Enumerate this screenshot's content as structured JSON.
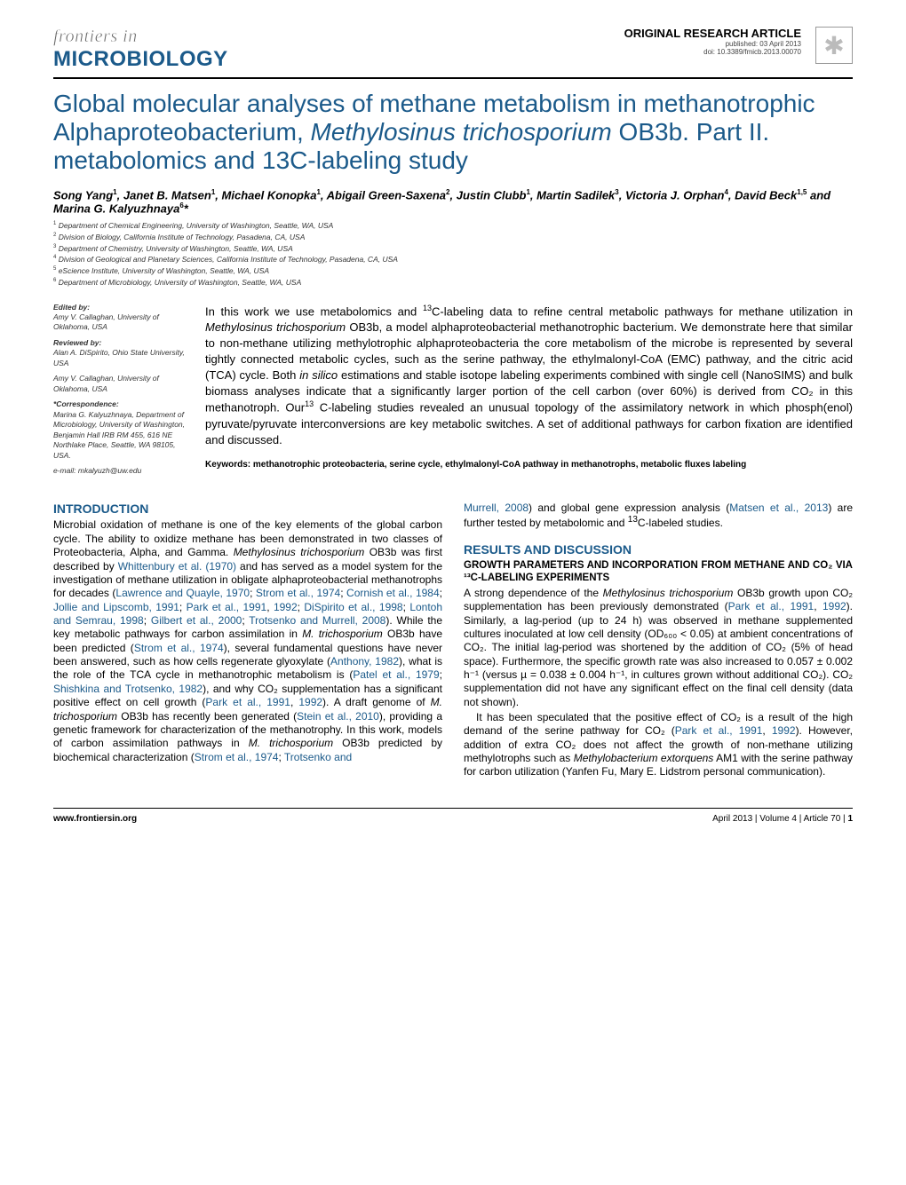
{
  "header": {
    "frontiers_in": "frontiers in",
    "microbiology": "MICROBIOLOGY",
    "article_type": "ORIGINAL RESEARCH ARTICLE",
    "pub_date": "published: 03 April 2013",
    "doi": "doi: 10.3389/fmicb.2013.00070"
  },
  "title": {
    "pre": "Global molecular analyses of methane metabolism in methanotrophic Alphaproteobacterium, ",
    "genus": "Methylosinus trichosporium",
    "post": " OB3b. Part II. metabolomics and 13C-labeling study"
  },
  "authors": {
    "list": [
      {
        "name": "Song Yang",
        "sup": "1"
      },
      {
        "name": "Janet B. Matsen",
        "sup": "1"
      },
      {
        "name": "Michael Konopka",
        "sup": "1"
      },
      {
        "name": "Abigail Green-Saxena",
        "sup": "2"
      },
      {
        "name": "Justin Clubb",
        "sup": "1"
      },
      {
        "name": "Martin Sadilek",
        "sup": "3"
      },
      {
        "name": "Victoria J. Orphan",
        "sup": "4"
      },
      {
        "name": "David Beck",
        "sup": "1,5"
      },
      {
        "name": "Marina G. Kalyuzhnaya",
        "sup": "6",
        "last": true,
        "star": true
      }
    ]
  },
  "affiliations": [
    {
      "num": "1",
      "text": "Department of Chemical Engineering, University of Washington, Seattle, WA, USA"
    },
    {
      "num": "2",
      "text": "Division of Biology, California Institute of Technology, Pasadena, CA, USA"
    },
    {
      "num": "3",
      "text": "Department of Chemistry, University of Washington, Seattle, WA, USA"
    },
    {
      "num": "4",
      "text": "Division of Geological and Planetary Sciences, California Institute of Technology, Pasadena, CA, USA"
    },
    {
      "num": "5",
      "text": "eScience Institute, University of Washington, Seattle, WA, USA"
    },
    {
      "num": "6",
      "text": "Department of Microbiology, University of Washington, Seattle, WA, USA"
    }
  ],
  "side": {
    "edited_label": "Edited by:",
    "edited": "Amy V. Callaghan, University of Oklahoma, USA",
    "reviewed_label": "Reviewed by:",
    "reviewed1": "Alan A. DiSpirito, Ohio State University, USA",
    "reviewed2": "Amy V. Callaghan, University of Oklahoma, USA",
    "corr_label": "*Correspondence:",
    "corr": "Marina G. Kalyuzhnaya, Department of Microbiology, University of Washington, Benjamin Hall IRB RM 455, 616 NE Northlake Place, Seattle, WA 98105, USA.",
    "email": "e-mail: mkalyuzh@uw.edu"
  },
  "abstract": {
    "p1a": "In this work we use metabolomics and ",
    "p1b": "C-labeling data to refine central metabolic pathways for methane utilization in ",
    "p1_ital": "Methylosinus trichosporium",
    "p1c": " OB3b, a model alphaproteobacterial methanotrophic bacterium. We demonstrate here that similar to non-methane utilizing methylotrophic alphaproteobacteria the core metabolism of the microbe is represented by several tightly connected metabolic cycles, such as the serine pathway, the ethylmalonyl-CoA (EMC) pathway, and the citric acid (TCA) cycle. Both ",
    "p1_ital2": "in silico",
    "p1d": " estimations and stable isotope labeling experiments combined with single cell (NanoSIMS) and bulk biomass analyses indicate that a significantly larger portion of the cell carbon (over 60%) is derived from CO₂ in this methanotroph. Our",
    "p1e": " C-labeling studies revealed an unusual topology of the assimilatory network in which phosph(enol) pyruvate/pyruvate interconversions are key metabolic switches. A set of additional pathways for carbon fixation are identified and discussed.",
    "keywords_label": "Keywords: ",
    "keywords": "methanotrophic proteobacteria, serine cycle, ethylmalonyl-CoA pathway in methanotrophs, metabolic fluxes labeling"
  },
  "intro": {
    "heading": "INTRODUCTION",
    "p1": "Microbial oxidation of methane is one of the key elements of the global carbon cycle. The ability to oxidize methane has been demonstrated in two classes of Proteobacteria, Alpha, and Gamma. ",
    "p1_ital": "Methylosinus trichosporium",
    "p1b": " OB3b was first described by ",
    "r1": "Whittenbury et al. (1970)",
    "p1c": " and has served as a model system for the investigation of methane utilization in obligate alphaproteobacterial methanotrophs for decades (",
    "r2": "Lawrence and Quayle, 1970",
    "r3": "Strom et al., 1974",
    "r4": "Cornish et al., 1984",
    "r5": "Jollie and Lipscomb, 1991",
    "r6": "Park et al., 1991",
    "r7": "1992",
    "r8": "DiSpirito et al., 1998",
    "r9": "Lontoh and Semrau, 1998",
    "r10": "Gilbert et al., 2000",
    "r11": "Trotsenko and Murrell, 2008",
    "p1d": "). While the key metabolic pathways for carbon assimilation in ",
    "p1_ital2": "M. trichosporium",
    "p1e": " OB3b have been predicted (",
    "r12": "Strom et al., 1974",
    "p1f": "), several fundamental questions have never been answered, such as how cells regenerate glyoxylate (",
    "r13": "Anthony, 1982",
    "p1g": "), what is the role of the TCA cycle in methanotrophic metabolism is (",
    "r14": "Patel et al., 1979",
    "r15": "Shishkina and Trotsenko, 1982",
    "p1h": "), and why CO₂ supplementation has a significant positive effect on cell growth (",
    "r16": "Park et al., 1991",
    "r17": "1992",
    "p1i": "). A draft genome of ",
    "p1_ital3": "M. trichosporium",
    "p1j": " OB3b has recently been generated (",
    "r18": "Stein et al., 2010",
    "p1k": "), providing a genetic framework for characterization of the methanotrophy. In this work, models of carbon assimilation pathways in ",
    "p1_ital4": "M. trichosporium",
    "p1l": " OB3b predicted by biochemical characterization (",
    "r19": "Strom et al., 1974",
    "r20": "Trotsenko and"
  },
  "col2top": {
    "r21": "Murrell, 2008",
    "t1": ") and global gene expression analysis (",
    "r22": "Matsen et al., 2013",
    "t2": ") are further tested by metabolomic and ",
    "t3": "C-labeled studies."
  },
  "results": {
    "heading": "RESULTS AND DISCUSSION",
    "sub": "GROWTH PARAMETERS AND INCORPORATION FROM METHANE AND CO₂ VIA ¹³C-LABELING EXPERIMENTS",
    "p1a": "A strong dependence of the ",
    "p1_ital": "Methylosinus trichosporium",
    "p1b": " OB3b growth upon CO₂ supplementation has been previously demonstrated (",
    "r1": "Park et al., 1991",
    "r2": "1992",
    "p1c": "). Similarly, a lag-period (up to 24 h) was observed in methane supplemented cultures inoculated at low cell density (OD₆₀₀ < 0.05) at ambient concentrations of CO₂. The initial lag-period was shortened by the addition of CO₂ (5% of head space). Furthermore, the specific growth rate was also increased to 0.057 ± 0.002 h⁻¹ (versus µ = 0.038 ± 0.004 h⁻¹, in cultures grown without additional CO₂). CO₂ supplementation did not have any significant effect on the final cell density (data not shown).",
    "p2a": "It has been speculated that the positive effect of CO₂ is a result of the high demand of the serine pathway for CO₂ (",
    "r3": "Park et al., 1991",
    "r4": "1992",
    "p2b": "). However, addition of extra CO₂ does not affect the growth of non-methane utilizing methylotrophs such as ",
    "p2_ital": "Methylobacterium extorquens",
    "p2c": " AM1 with the serine pathway for carbon utilization (Yanfen Fu, Mary E. Lidstrom personal communication)."
  },
  "footer": {
    "left": "www.frontiersin.org",
    "right_date": "April 2013 | Volume 4 | Article 70 | ",
    "right_page": "1"
  },
  "colors": {
    "accent": "#1b5a8a"
  }
}
